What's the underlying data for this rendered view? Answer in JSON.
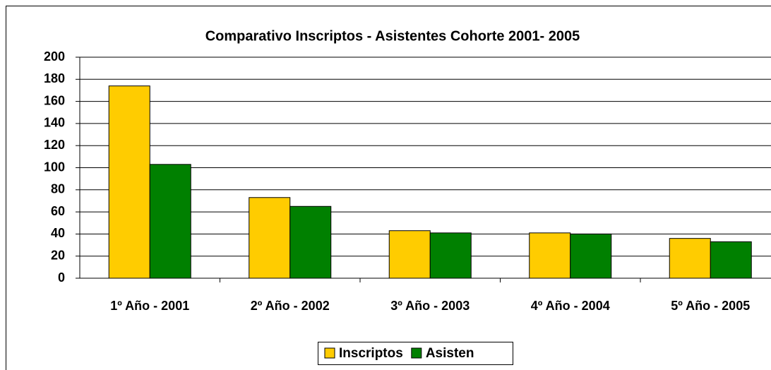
{
  "chart_data": {
    "type": "bar",
    "title": "Comparativo Inscriptos - Asistentes Cohorte 2001- 2005",
    "categories": [
      "1º Año - 2001",
      "2º Año - 2002",
      "3º Año - 2003",
      "4º Año - 2004",
      "5º Año - 2005"
    ],
    "series": [
      {
        "name": "Inscriptos",
        "color": "#ffcc00",
        "values": [
          174,
          73,
          43,
          41,
          36
        ]
      },
      {
        "name": "Asisten",
        "color": "#008000",
        "values": [
          103,
          65,
          41,
          40,
          33
        ]
      }
    ],
    "ylim": [
      0,
      200
    ],
    "yticks": [
      0,
      20,
      40,
      60,
      80,
      100,
      120,
      140,
      160,
      180,
      200
    ],
    "grid": true,
    "legend": "bottom"
  }
}
